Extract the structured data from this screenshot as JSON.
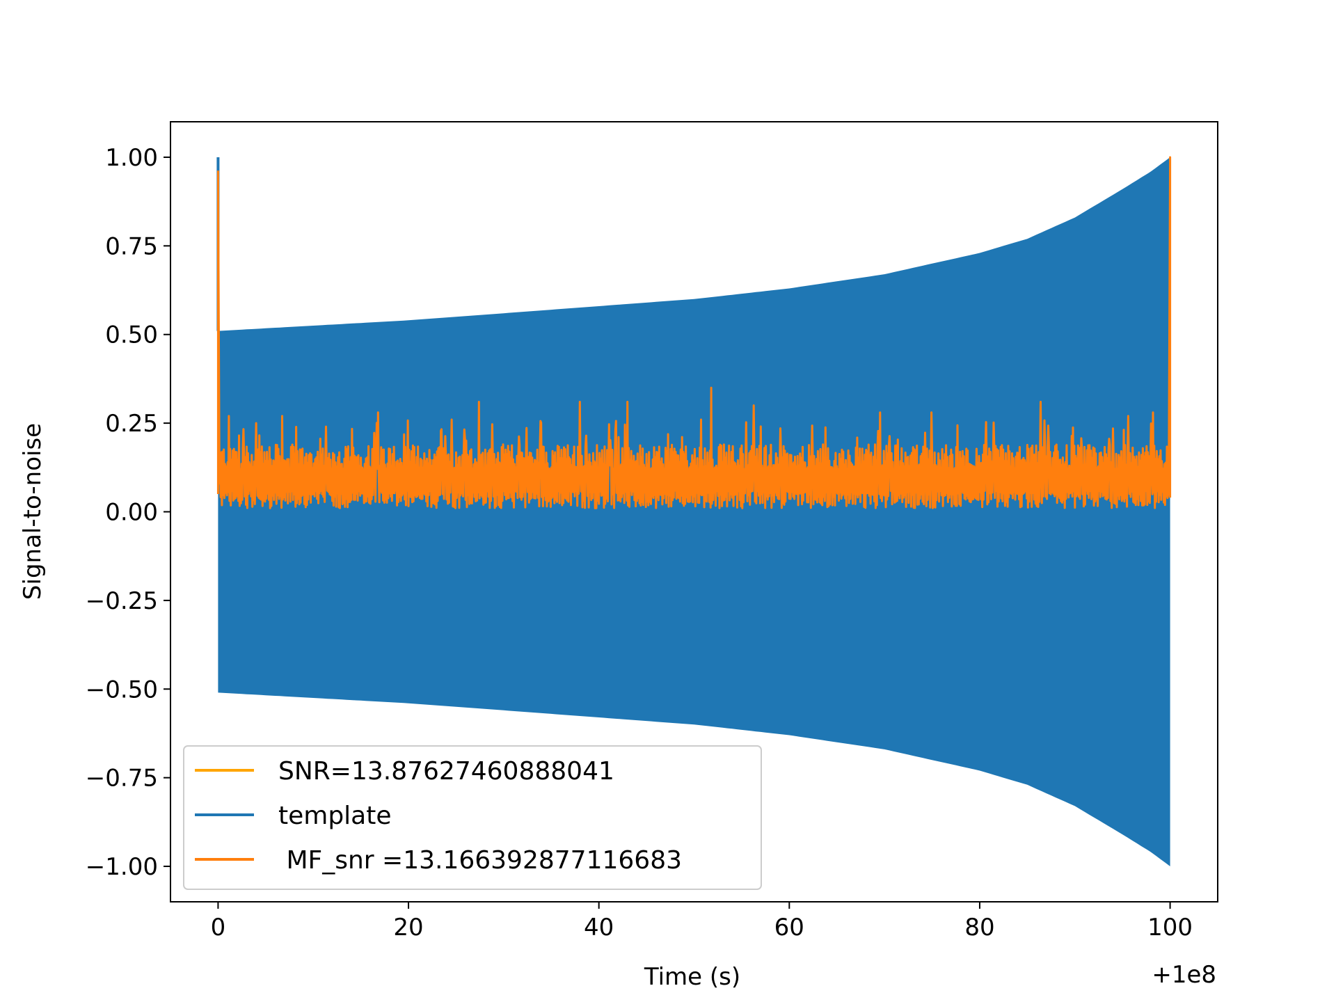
{
  "chart_data": {
    "type": "line",
    "title": "",
    "xlabel": "Time (s)",
    "ylabel": "Signal-to-noise",
    "x_offset_label": "+1e8",
    "xlim": [
      -5,
      105
    ],
    "ylim": [
      -1.1,
      1.1
    ],
    "xticks": [
      0,
      20,
      40,
      60,
      80,
      100
    ],
    "xtick_labels": [
      "0",
      "20",
      "40",
      "60",
      "80",
      "100"
    ],
    "yticks": [
      1.0,
      0.75,
      0.5,
      0.25,
      0.0,
      -0.25,
      -0.5,
      -0.75,
      -1.0
    ],
    "ytick_labels": [
      "1.00",
      "0.75",
      "0.50",
      "0.25",
      "0.00",
      "−0.25",
      "−0.50",
      "−0.75",
      "−1.00"
    ],
    "legend_position": "lower-left",
    "series": [
      {
        "name": "SNR=13.87627460888041",
        "color": "#ffa500",
        "kind": "legend-only"
      },
      {
        "name": "template",
        "color": "#1f77b4",
        "kind": "envelope",
        "x": [
          0,
          10,
          20,
          30,
          40,
          50,
          60,
          70,
          80,
          85,
          90,
          95,
          98,
          100
        ],
        "upper": [
          0.51,
          0.525,
          0.54,
          0.56,
          0.58,
          0.6,
          0.63,
          0.67,
          0.73,
          0.77,
          0.83,
          0.91,
          0.96,
          1.0
        ],
        "lower": [
          -0.51,
          -0.525,
          -0.54,
          -0.56,
          -0.58,
          -0.6,
          -0.63,
          -0.67,
          -0.73,
          -0.77,
          -0.83,
          -0.91,
          -0.96,
          -1.0
        ],
        "start_spike": 1.0
      },
      {
        "name": " MF_snr =13.166392877116683",
        "color": "#ff7f0e",
        "kind": "noise",
        "x_range": [
          0,
          100
        ],
        "typical_range": [
          0.01,
          0.19
        ],
        "start_spike": 0.96,
        "end_spike": 1.0,
        "peaks": [
          {
            "x": 1.1,
            "y": 0.27
          },
          {
            "x": 4.0,
            "y": 0.25
          },
          {
            "x": 6.7,
            "y": 0.27
          },
          {
            "x": 16.8,
            "y": 0.28
          },
          {
            "x": 24.5,
            "y": 0.26
          },
          {
            "x": 27.4,
            "y": 0.31
          },
          {
            "x": 38.0,
            "y": 0.31
          },
          {
            "x": 43.0,
            "y": 0.31
          },
          {
            "x": 50.7,
            "y": 0.26
          },
          {
            "x": 51.8,
            "y": 0.35
          },
          {
            "x": 56.3,
            "y": 0.3
          },
          {
            "x": 69.5,
            "y": 0.28
          },
          {
            "x": 74.9,
            "y": 0.28
          },
          {
            "x": 86.4,
            "y": 0.31
          },
          {
            "x": 95.6,
            "y": 0.27
          },
          {
            "x": 98.2,
            "y": 0.28
          }
        ]
      }
    ]
  }
}
